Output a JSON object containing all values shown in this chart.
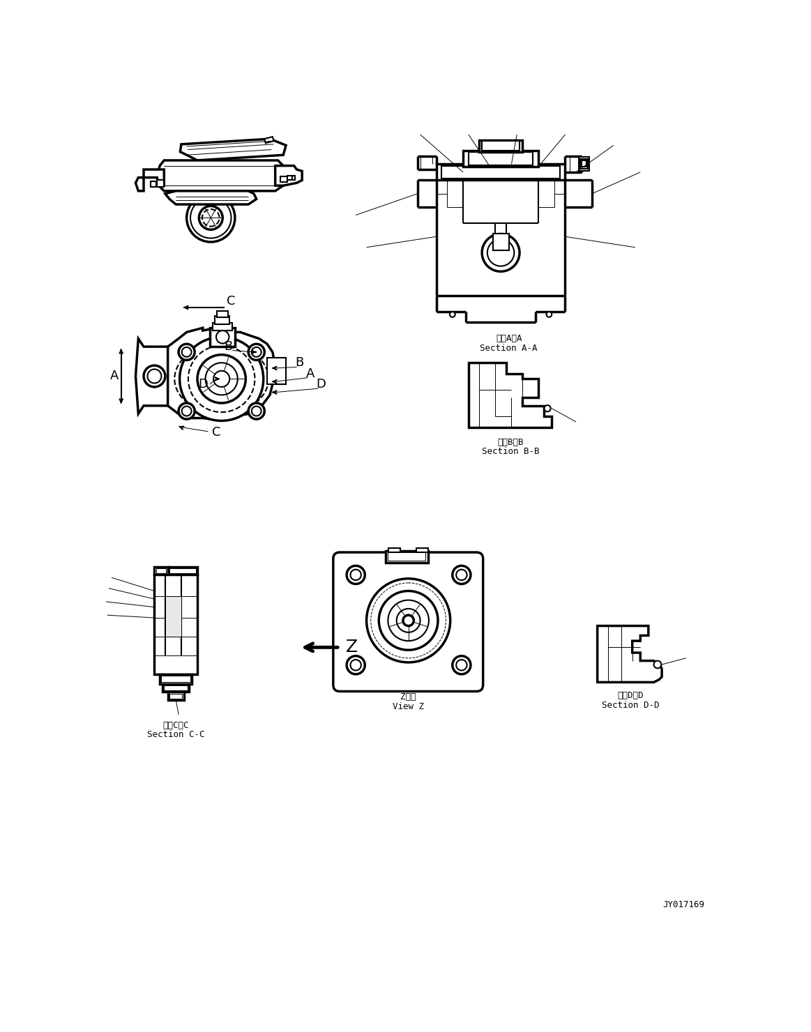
{
  "bg_color": "#ffffff",
  "lc": "#000000",
  "lw": 1.5,
  "tlw": 2.5,
  "slw": 0.7,
  "labels": {
    "section_aa": [
      "断面A－A",
      "Section A-A"
    ],
    "section_bb": [
      "断面B－B",
      "Section B-B"
    ],
    "section_cc": [
      "断面C－C",
      "Section C-C"
    ],
    "section_dd": [
      "断面D－D",
      "Section D-D"
    ],
    "view_z": [
      "Z　視",
      "View Z"
    ],
    "part_no": "JY017169",
    "A": "A",
    "B": "B",
    "C": "C",
    "D": "D",
    "Z": "Z"
  },
  "fs": 10,
  "fs_label": 9,
  "fs_partno": 9,
  "fs_letter": 13
}
